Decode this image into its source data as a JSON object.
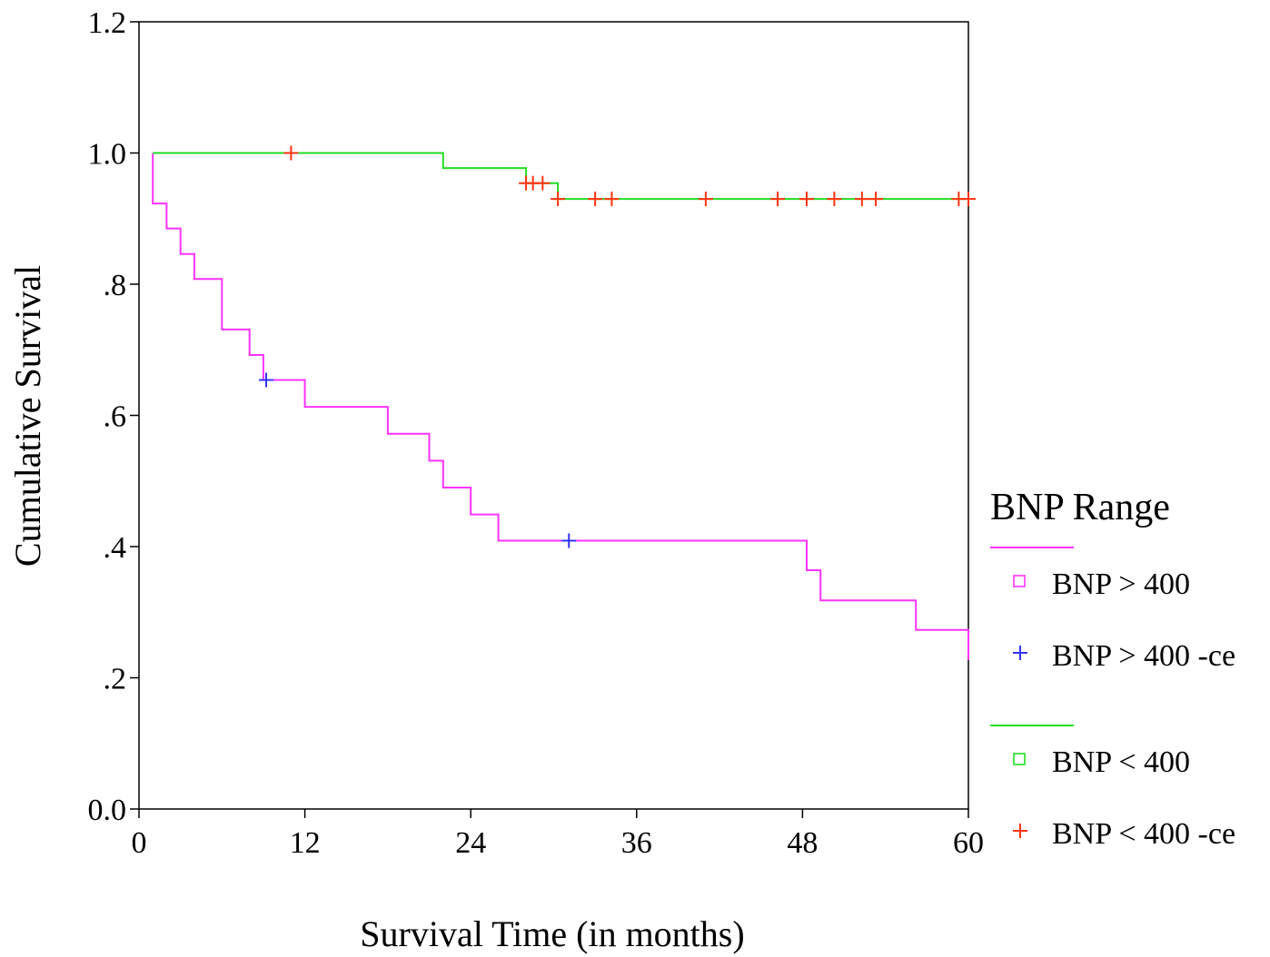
{
  "chart_data": {
    "type": "line",
    "title": "",
    "xlabel": "Survival Time (in months)",
    "ylabel": "Cumulative Survival",
    "xlim": [
      0,
      60
    ],
    "ylim": [
      0,
      1.2
    ],
    "x_ticks": [
      0,
      12,
      24,
      36,
      48,
      60
    ],
    "x_tick_labels": [
      "0",
      "12",
      "24",
      "36",
      "48",
      "60"
    ],
    "y_ticks": [
      0,
      0.2,
      0.4,
      0.6,
      0.8,
      1.0,
      1.2
    ],
    "y_tick_labels": [
      "0.0",
      ".2",
      ".4",
      ".6",
      ".8",
      "1.0",
      "1.2"
    ],
    "grid": false,
    "legend_placement": "right",
    "legend_title": "BNP Range",
    "series": [
      {
        "name": "BNP > 400",
        "color": "#ff33ff",
        "steps": [
          [
            1,
            1.0
          ],
          [
            1,
            0.923
          ],
          [
            2,
            0.923
          ],
          [
            2,
            0.885
          ],
          [
            3,
            0.885
          ],
          [
            3,
            0.846
          ],
          [
            4,
            0.846
          ],
          [
            4,
            0.808
          ],
          [
            6,
            0.808
          ],
          [
            6,
            0.731
          ],
          [
            8,
            0.731
          ],
          [
            8,
            0.692
          ],
          [
            9,
            0.692
          ],
          [
            9,
            0.654
          ],
          [
            12,
            0.654
          ],
          [
            12,
            0.613
          ],
          [
            18,
            0.613
          ],
          [
            18,
            0.572
          ],
          [
            21,
            0.572
          ],
          [
            21,
            0.531
          ],
          [
            22,
            0.531
          ],
          [
            22,
            0.49
          ],
          [
            24,
            0.49
          ],
          [
            24,
            0.449
          ],
          [
            26,
            0.449
          ],
          [
            26,
            0.409
          ],
          [
            48.3,
            0.409
          ],
          [
            48.3,
            0.364
          ],
          [
            49.3,
            0.364
          ],
          [
            49.3,
            0.318
          ],
          [
            56.2,
            0.318
          ],
          [
            56.2,
            0.273
          ],
          [
            60,
            0.273
          ],
          [
            60,
            0.227
          ]
        ],
        "censored": [
          [
            9.2,
            0.654
          ],
          [
            31.1,
            0.409
          ]
        ],
        "censor_color": "#3333ff"
      },
      {
        "name": "BNP < 400",
        "color": "#22dd22",
        "steps": [
          [
            1,
            1.0
          ],
          [
            22,
            1.0
          ],
          [
            22,
            0.977
          ],
          [
            28,
            0.977
          ],
          [
            28,
            0.954
          ],
          [
            30.3,
            0.954
          ],
          [
            30.3,
            0.93
          ],
          [
            60,
            0.93
          ]
        ],
        "censored": [
          [
            11,
            1.0
          ],
          [
            28,
            0.954
          ],
          [
            28.5,
            0.954
          ],
          [
            29.2,
            0.954
          ],
          [
            30.3,
            0.93
          ],
          [
            33,
            0.93
          ],
          [
            34.2,
            0.93
          ],
          [
            41,
            0.93
          ],
          [
            46.2,
            0.93
          ],
          [
            48.3,
            0.93
          ],
          [
            50.3,
            0.93
          ],
          [
            52.3,
            0.93
          ],
          [
            53.3,
            0.93
          ],
          [
            59.3,
            0.93
          ],
          [
            60,
            0.93
          ]
        ],
        "censor_color": "#ff3311"
      }
    ],
    "legend_items": [
      {
        "label": "BNP > 400",
        "kind": "line",
        "color": "#ff33ff"
      },
      {
        "label": "BNP > 400",
        "kind": "square",
        "color": "#ff33ff"
      },
      {
        "label": "BNP > 400 -ce",
        "kind": "plus",
        "color": "#3333ff"
      },
      {
        "label": "BNP < 400",
        "kind": "line",
        "color": "#22dd22"
      },
      {
        "label": "BNP < 400",
        "kind": "square",
        "color": "#22dd22"
      },
      {
        "label": "BNP < 400 -ce",
        "kind": "plus",
        "color": "#ff3311"
      }
    ]
  }
}
